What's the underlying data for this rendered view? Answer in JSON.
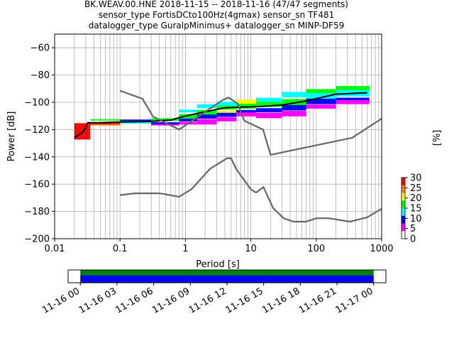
{
  "title_lines": [
    "BK.WEAV.00.HNE   2018-11-15 -- 2018-11-16  (47/47 segments)",
    "sensor_type FortisDCto100Hz(4gmax) sensor_sn TF481",
    "datalogger_type GuralpMinimus+ datalogger_sn MINP-DF59"
  ],
  "chart_data": {
    "type": "heatmap",
    "xlabel": "Period [s]",
    "ylabel": "Power [dB]",
    "xscale": "log",
    "xlim": [
      0.01,
      1000
    ],
    "ylim": [
      -200,
      -50
    ],
    "xtick_labels": [
      "0.01",
      "0.1",
      "1",
      "10",
      "100",
      "1000"
    ],
    "ytick_values": [
      -200,
      -180,
      -160,
      -140,
      -120,
      -100,
      -80,
      -60
    ],
    "grid": true,
    "colorbar": {
      "label": "[%]",
      "range": [
        0,
        30
      ],
      "tick_values": [
        0,
        5,
        10,
        15,
        20,
        25,
        30
      ],
      "colormap": [
        "#ffffff",
        "#ff00ff",
        "#0000ff",
        "#00ffff",
        "#00ff00",
        "#ffff00",
        "#ff8000",
        "#ff0000"
      ]
    },
    "series": [
      {
        "role": "mode",
        "color": "#000000",
        "points": [
          [
            0.02,
            -126
          ],
          [
            0.025,
            -123
          ],
          [
            0.028,
            -121
          ],
          [
            0.032,
            -115
          ],
          [
            0.05,
            -115
          ],
          [
            0.1,
            -114.5
          ],
          [
            0.3,
            -114
          ],
          [
            0.6,
            -113
          ],
          [
            1,
            -110
          ],
          [
            2,
            -107
          ],
          [
            4,
            -104
          ],
          [
            7,
            -103.5
          ],
          [
            15,
            -103
          ],
          [
            30,
            -102
          ],
          [
            70,
            -99
          ],
          [
            200,
            -94
          ],
          [
            600,
            -93
          ]
        ]
      },
      {
        "role": "nlnm",
        "color": "#666666",
        "points": [
          [
            0.1,
            -168
          ],
          [
            0.17,
            -166.7
          ],
          [
            0.4,
            -166.7
          ],
          [
            0.8,
            -169.2
          ],
          [
            1.24,
            -163.7
          ],
          [
            2.4,
            -148.6
          ],
          [
            4.3,
            -141.1
          ],
          [
            5,
            -141.1
          ],
          [
            6,
            -149
          ],
          [
            10,
            -163.8
          ],
          [
            12,
            -166.2
          ],
          [
            15.6,
            -162.1
          ],
          [
            21.9,
            -177.5
          ],
          [
            31.6,
            -185
          ],
          [
            45,
            -187.5
          ],
          [
            70,
            -187.5
          ],
          [
            101,
            -185
          ],
          [
            154,
            -185
          ],
          [
            328,
            -187.5
          ],
          [
            600,
            -184.4
          ],
          [
            1000,
            -178
          ]
        ]
      },
      {
        "role": "nhnm",
        "color": "#666666",
        "points": [
          [
            0.1,
            -91.5
          ],
          [
            0.22,
            -97.4
          ],
          [
            0.32,
            -110.5
          ],
          [
            0.8,
            -120
          ],
          [
            3.8,
            -98
          ],
          [
            4.6,
            -96.5
          ],
          [
            6.3,
            -101
          ],
          [
            7.9,
            -113.5
          ],
          [
            15.4,
            -120
          ],
          [
            20,
            -138.5
          ],
          [
            354.8,
            -126
          ],
          [
            1000,
            -112
          ]
        ]
      }
    ],
    "heatmap_cells": [
      {
        "band": [
          0.02,
          0.035
        ],
        "rows": [
          [
            -127,
            -115,
            "#ff0000"
          ]
        ]
      },
      {
        "band": [
          0.035,
          0.1
        ],
        "rows": [
          [
            -116,
            -114,
            "#ff0000"
          ],
          [
            -117,
            -116,
            "#ff8000"
          ],
          [
            -114,
            -113,
            "#00ff00"
          ]
        ]
      },
      {
        "band": [
          0.1,
          0.3
        ],
        "rows": [
          [
            -115,
            -113,
            "#00ff00"
          ],
          [
            -116,
            -115,
            "#00ffff"
          ],
          [
            -113,
            -112,
            "#0000ff"
          ]
        ]
      },
      {
        "band": [
          0.3,
          0.8
        ],
        "rows": [
          [
            -114,
            -112,
            "#00ff00"
          ],
          [
            -116,
            -114,
            "#0000ff"
          ],
          [
            -117,
            -116,
            "#ff00ff"
          ]
        ]
      },
      {
        "band": [
          0.8,
          1.5
        ],
        "rows": [
          [
            -112,
            -108,
            "#00ff00"
          ],
          [
            -114,
            -112,
            "#0000ff"
          ],
          [
            -108,
            -106,
            "#00ffff"
          ],
          [
            -116,
            -114,
            "#ff00ff"
          ]
        ]
      },
      {
        "band": [
          1.5,
          3
        ],
        "rows": [
          [
            -109,
            -105,
            "#00ff00"
          ],
          [
            -112,
            -109,
            "#0000ff"
          ],
          [
            -105,
            -102,
            "#00ffff"
          ],
          [
            -116,
            -112,
            "#ff00ff"
          ]
        ]
      },
      {
        "band": [
          3,
          6
        ],
        "rows": [
          [
            -106,
            -102,
            "#00ff00"
          ],
          [
            -108,
            -106,
            "#ffff00"
          ],
          [
            -111,
            -108,
            "#0000ff"
          ],
          [
            -102,
            -99,
            "#00ffff"
          ],
          [
            -114,
            -111,
            "#ff00ff"
          ]
        ]
      },
      {
        "band": [
          6,
          12
        ],
        "rows": [
          [
            -105,
            -101,
            "#00ff00"
          ],
          [
            -108,
            -105,
            "#0000ff"
          ],
          [
            -101,
            -98,
            "#ffff00"
          ],
          [
            -111,
            -108,
            "#ff00ff"
          ]
        ]
      },
      {
        "band": [
          12,
          30
        ],
        "rows": [
          [
            -104,
            -100,
            "#00ff00"
          ],
          [
            -107,
            -104,
            "#0000ff"
          ],
          [
            -100,
            -97,
            "#00ffff"
          ],
          [
            -111,
            -107,
            "#ff00ff"
          ]
        ]
      },
      {
        "band": [
          30,
          70
        ],
        "rows": [
          [
            -102,
            -97,
            "#00ff00"
          ],
          [
            -106,
            -102,
            "#0000ff"
          ],
          [
            -97,
            -93,
            "#00ffff"
          ],
          [
            -110,
            -106,
            "#ff00ff"
          ]
        ]
      },
      {
        "band": [
          70,
          200
        ],
        "rows": [
          [
            -98,
            -93,
            "#00ffff"
          ],
          [
            -102,
            -98,
            "#0000ff"
          ],
          [
            -93,
            -90,
            "#00ff00"
          ],
          [
            -105,
            -102,
            "#ff00ff"
          ]
        ]
      },
      {
        "band": [
          200,
          650
        ],
        "rows": [
          [
            -96,
            -91,
            "#00ffff"
          ],
          [
            -99,
            -96,
            "#0000ff"
          ],
          [
            -91,
            -88,
            "#00ff00"
          ],
          [
            -102,
            -99,
            "#ff00ff"
          ]
        ]
      }
    ]
  },
  "timeline": {
    "tick_labels": [
      "11-16 00",
      "11-16 03",
      "11-16 06",
      "11-16 09",
      "11-16 12",
      "11-16 15",
      "11-16 18",
      "11-16 21",
      "11-17 00"
    ],
    "coverage_span_hours": [
      0,
      24
    ],
    "view_span_hours": [
      -1,
      25
    ],
    "colors": [
      "#008000",
      "#0000ff"
    ]
  }
}
